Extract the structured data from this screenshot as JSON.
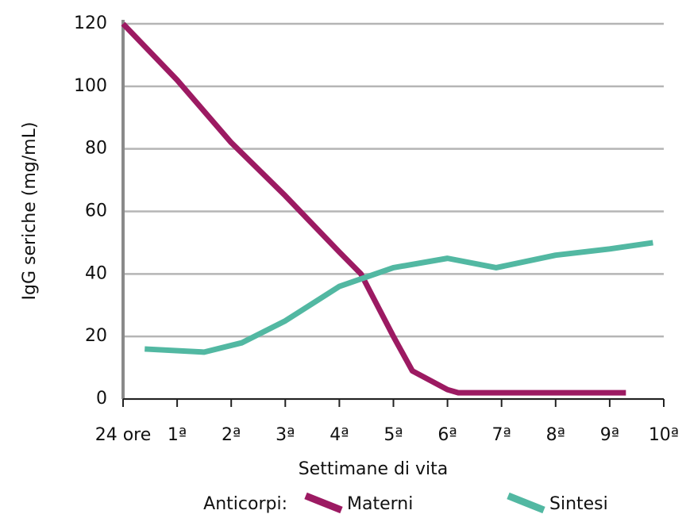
{
  "chart_data": {
    "type": "line",
    "y_label": "IgG seriche (mg/mL)",
    "x_label": "Settimane di vita",
    "legend_title": "Anticorpi:",
    "legend": "bottom",
    "grid": true,
    "xlim": [
      0,
      10
    ],
    "xticks": [
      {
        "value": 0,
        "label": "24 ore"
      },
      {
        "value": 1,
        "label": "1ª"
      },
      {
        "value": 2,
        "label": "2ª"
      },
      {
        "value": 3,
        "label": "3ª"
      },
      {
        "value": 4,
        "label": "4ª"
      },
      {
        "value": 5,
        "label": "5ª"
      },
      {
        "value": 6,
        "label": "6ª"
      },
      {
        "value": 7,
        "label": "7ª"
      },
      {
        "value": 8,
        "label": "8ª"
      },
      {
        "value": 9,
        "label": "9ª"
      },
      {
        "value": 10,
        "label": "10ª"
      }
    ],
    "ylim": [
      0,
      120
    ],
    "yticks": [
      0,
      20,
      40,
      60,
      80,
      100,
      120
    ],
    "series": [
      {
        "name": "Materni",
        "color": "#9c1a62",
        "x": [
          0,
          1,
          2,
          3,
          4,
          4.4,
          5,
          5.35,
          6,
          6.2,
          9.3
        ],
        "values": [
          120,
          102,
          82,
          65,
          47,
          40,
          20,
          9,
          3,
          2,
          2
        ]
      },
      {
        "name": "Sintesi",
        "color": "#52b8a2",
        "x": [
          0.4,
          1.5,
          2.2,
          3,
          4,
          5,
          6,
          6.9,
          8,
          9,
          9.8
        ],
        "values": [
          16,
          15,
          18,
          25,
          36,
          42,
          45,
          42,
          46,
          48,
          50
        ]
      }
    ]
  }
}
